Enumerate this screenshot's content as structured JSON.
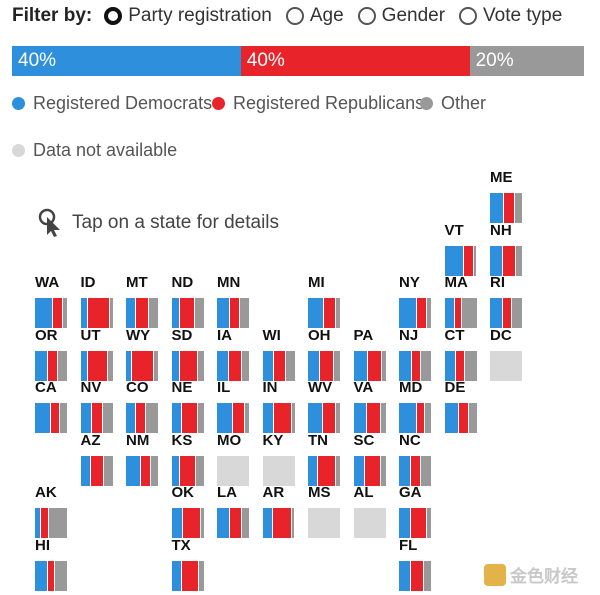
{
  "filter": {
    "title": "Filter by:",
    "options": [
      {
        "label": "Party registration",
        "selected": true
      },
      {
        "label": "Age",
        "selected": false
      },
      {
        "label": "Gender",
        "selected": false
      },
      {
        "label": "Vote type",
        "selected": false
      }
    ]
  },
  "national_share": {
    "democrats_pct": 40,
    "republicans_pct": 40,
    "other_pct": 20,
    "democrats_label": "40%",
    "republicans_label": "40%",
    "other_label": "20%"
  },
  "legend": {
    "democrats": "Registered Democrats",
    "republicans": "Registered Republicans",
    "other": "Other",
    "na": "Data not available"
  },
  "hint": "Tap on a state for details",
  "colors": {
    "democrats": "#2e8fdc",
    "republicans": "#e8242a",
    "other": "#999999",
    "na": "#d8d8d8"
  },
  "states": [
    {
      "abbr": "ME",
      "col": 10,
      "row": 0,
      "shares": [
        0.42,
        0.36,
        0.22
      ]
    },
    {
      "abbr": "VT",
      "col": 9,
      "row": 1,
      "shares": [
        0.6,
        0.3,
        0.1
      ]
    },
    {
      "abbr": "NH",
      "col": 10,
      "row": 1,
      "shares": [
        0.4,
        0.4,
        0.2
      ]
    },
    {
      "abbr": "WA",
      "col": 0,
      "row": 2,
      "shares": [
        0.55,
        0.3,
        0.15
      ]
    },
    {
      "abbr": "ID",
      "col": 1,
      "row": 2,
      "shares": [
        0.2,
        0.7,
        0.1
      ]
    },
    {
      "abbr": "MT",
      "col": 2,
      "row": 2,
      "shares": [
        0.3,
        0.4,
        0.3
      ]
    },
    {
      "abbr": "ND",
      "col": 3,
      "row": 2,
      "shares": [
        0.25,
        0.45,
        0.3
      ]
    },
    {
      "abbr": "MN",
      "col": 4,
      "row": 2,
      "shares": [
        0.4,
        0.3,
        0.3
      ]
    },
    {
      "abbr": "MI",
      "col": 6,
      "row": 2,
      "shares": [
        0.5,
        0.38,
        0.12
      ]
    },
    {
      "abbr": "NY",
      "col": 8,
      "row": 2,
      "shares": [
        0.55,
        0.3,
        0.15
      ]
    },
    {
      "abbr": "MA",
      "col": 9,
      "row": 2,
      "shares": [
        0.3,
        0.2,
        0.5
      ]
    },
    {
      "abbr": "RI",
      "col": 10,
      "row": 2,
      "shares": [
        0.4,
        0.25,
        0.35
      ]
    },
    {
      "abbr": "OR",
      "col": 0,
      "row": 3,
      "shares": [
        0.4,
        0.3,
        0.3
      ]
    },
    {
      "abbr": "UT",
      "col": 1,
      "row": 3,
      "shares": [
        0.2,
        0.65,
        0.15
      ]
    },
    {
      "abbr": "WY",
      "col": 2,
      "row": 3,
      "shares": [
        0.15,
        0.7,
        0.15
      ]
    },
    {
      "abbr": "SD",
      "col": 3,
      "row": 3,
      "shares": [
        0.25,
        0.55,
        0.2
      ]
    },
    {
      "abbr": "IA",
      "col": 4,
      "row": 3,
      "shares": [
        0.35,
        0.4,
        0.25
      ]
    },
    {
      "abbr": "WI",
      "col": 5,
      "row": 3,
      "shares": [
        0.35,
        0.35,
        0.3
      ]
    },
    {
      "abbr": "OH",
      "col": 6,
      "row": 3,
      "shares": [
        0.35,
        0.45,
        0.2
      ]
    },
    {
      "abbr": "PA",
      "col": 7,
      "row": 3,
      "shares": [
        0.45,
        0.42,
        0.13
      ]
    },
    {
      "abbr": "NJ",
      "col": 8,
      "row": 3,
      "shares": [
        0.4,
        0.25,
        0.35
      ]
    },
    {
      "abbr": "CT",
      "col": 9,
      "row": 3,
      "shares": [
        0.35,
        0.25,
        0.4
      ]
    },
    {
      "abbr": "DC",
      "col": 10,
      "row": 3,
      "shares": null
    },
    {
      "abbr": "CA",
      "col": 0,
      "row": 4,
      "shares": [
        0.5,
        0.25,
        0.25
      ]
    },
    {
      "abbr": "NV",
      "col": 1,
      "row": 4,
      "shares": [
        0.35,
        0.33,
        0.32
      ]
    },
    {
      "abbr": "CO",
      "col": 2,
      "row": 4,
      "shares": [
        0.3,
        0.3,
        0.4
      ]
    },
    {
      "abbr": "NE",
      "col": 3,
      "row": 4,
      "shares": [
        0.3,
        0.5,
        0.2
      ]
    },
    {
      "abbr": "IL",
      "col": 4,
      "row": 4,
      "shares": [
        0.5,
        0.35,
        0.15
      ]
    },
    {
      "abbr": "IN",
      "col": 5,
      "row": 4,
      "shares": [
        0.35,
        0.55,
        0.1
      ]
    },
    {
      "abbr": "WV",
      "col": 6,
      "row": 4,
      "shares": [
        0.45,
        0.4,
        0.15
      ]
    },
    {
      "abbr": "VA",
      "col": 7,
      "row": 4,
      "shares": [
        0.4,
        0.45,
        0.15
      ]
    },
    {
      "abbr": "MD",
      "col": 8,
      "row": 4,
      "shares": [
        0.55,
        0.25,
        0.2
      ]
    },
    {
      "abbr": "DE",
      "col": 9,
      "row": 4,
      "shares": [
        0.45,
        0.3,
        0.25
      ]
    },
    {
      "abbr": "AZ",
      "col": 1,
      "row": 5,
      "shares": [
        0.3,
        0.4,
        0.3
      ]
    },
    {
      "abbr": "NM",
      "col": 2,
      "row": 5,
      "shares": [
        0.45,
        0.3,
        0.25
      ]
    },
    {
      "abbr": "KS",
      "col": 3,
      "row": 5,
      "shares": [
        0.25,
        0.5,
        0.25
      ]
    },
    {
      "abbr": "MO",
      "col": 4,
      "row": 5,
      "shares": null
    },
    {
      "abbr": "KY",
      "col": 5,
      "row": 5,
      "shares": null
    },
    {
      "abbr": "TN",
      "col": 6,
      "row": 5,
      "shares": [
        0.3,
        0.55,
        0.15
      ]
    },
    {
      "abbr": "SC",
      "col": 7,
      "row": 5,
      "shares": [
        0.35,
        0.5,
        0.15
      ]
    },
    {
      "abbr": "NC",
      "col": 8,
      "row": 5,
      "shares": [
        0.35,
        0.3,
        0.35
      ]
    },
    {
      "abbr": "AK",
      "col": 0,
      "row": 6,
      "shares": [
        0.15,
        0.25,
        0.6
      ]
    },
    {
      "abbr": "OK",
      "col": 3,
      "row": 6,
      "shares": [
        0.35,
        0.55,
        0.1
      ]
    },
    {
      "abbr": "LA",
      "col": 4,
      "row": 6,
      "shares": [
        0.4,
        0.35,
        0.25
      ]
    },
    {
      "abbr": "AR",
      "col": 5,
      "row": 6,
      "shares": [
        0.3,
        0.6,
        0.1
      ]
    },
    {
      "abbr": "MS",
      "col": 6,
      "row": 6,
      "shares": null
    },
    {
      "abbr": "AL",
      "col": 7,
      "row": 6,
      "shares": null
    },
    {
      "abbr": "GA",
      "col": 8,
      "row": 6,
      "shares": [
        0.35,
        0.5,
        0.15
      ]
    },
    {
      "abbr": "HI",
      "col": 0,
      "row": 7,
      "shares": [
        0.4,
        0.2,
        0.4
      ]
    },
    {
      "abbr": "TX",
      "col": 3,
      "row": 7,
      "shares": [
        0.3,
        0.55,
        0.15
      ]
    },
    {
      "abbr": "FL",
      "col": 8,
      "row": 7,
      "shares": [
        0.35,
        0.4,
        0.25
      ]
    }
  ],
  "watermark": "金色财经"
}
